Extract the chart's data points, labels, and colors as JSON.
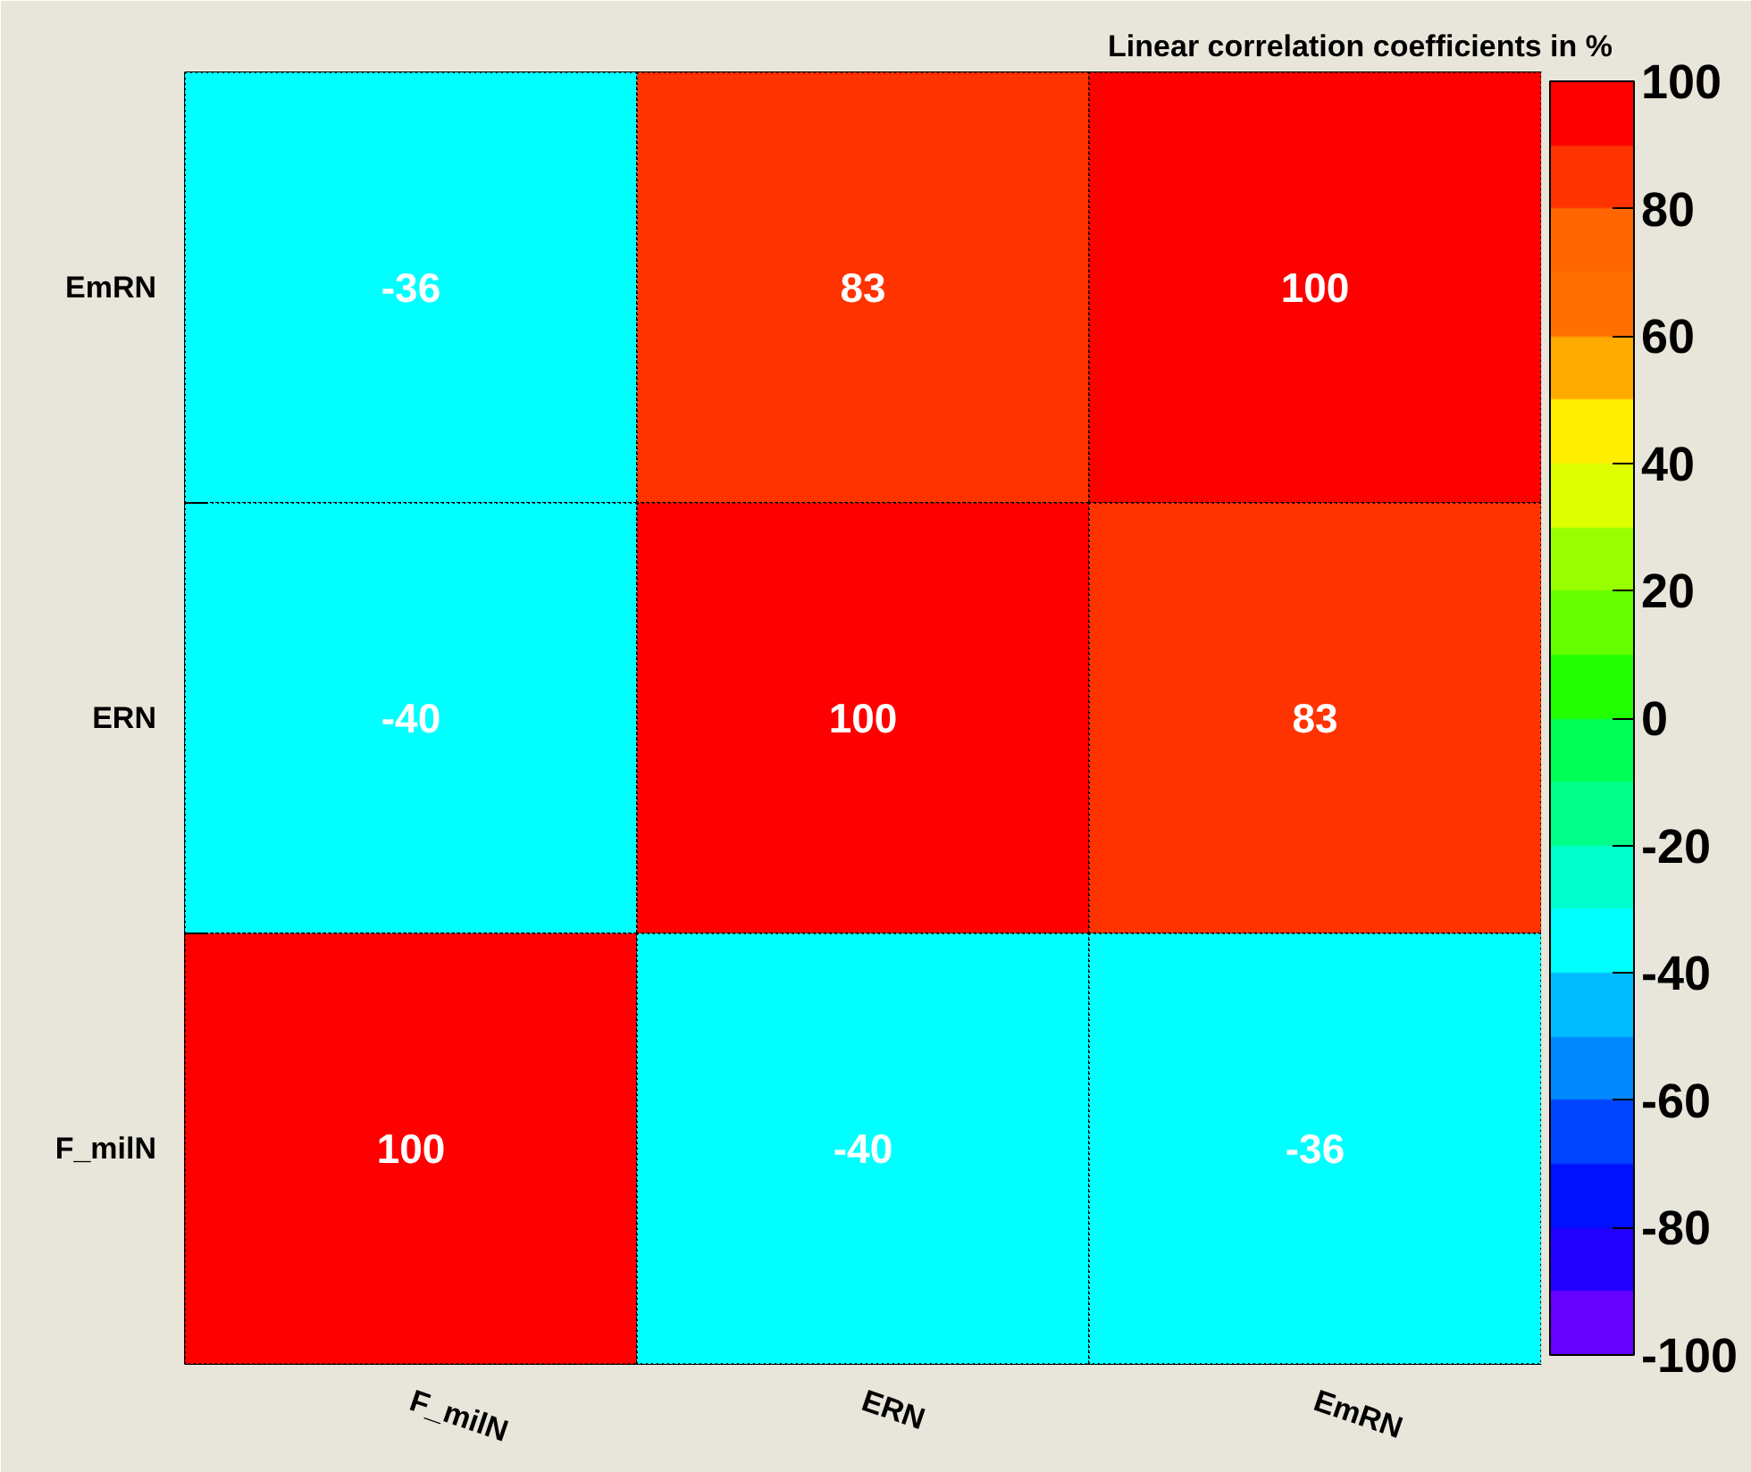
{
  "chart_data": {
    "type": "heatmap",
    "clabel": "Linear correlation coefficients in %",
    "categories": [
      "F_milN",
      "ERN",
      "EmRN"
    ],
    "y_categories": [
      "EmRN",
      "ERN",
      "F_milN"
    ],
    "cells": [
      [
        -36,
        83,
        100
      ],
      [
        -40,
        100,
        83
      ],
      [
        100,
        -40,
        -36
      ]
    ],
    "data_labels": true,
    "clim": [
      -100,
      100
    ],
    "cticks": [
      -100,
      -80,
      -60,
      -40,
      -20,
      0,
      20,
      40,
      60,
      80,
      100
    ],
    "colors": [
      "#6600ff",
      "#2200ff",
      "#0011ff",
      "#0044ff",
      "#0088ff",
      "#00bbff",
      "#00ffff",
      "#00ffcc",
      "#00ff88",
      "#00ff55",
      "#22ff00",
      "#66ff00",
      "#99ff00",
      "#ddff00",
      "#ffee00",
      "#ffaa00",
      "#ff7000",
      "#ff6600",
      "#ff3300",
      "#ff0000"
    ]
  }
}
